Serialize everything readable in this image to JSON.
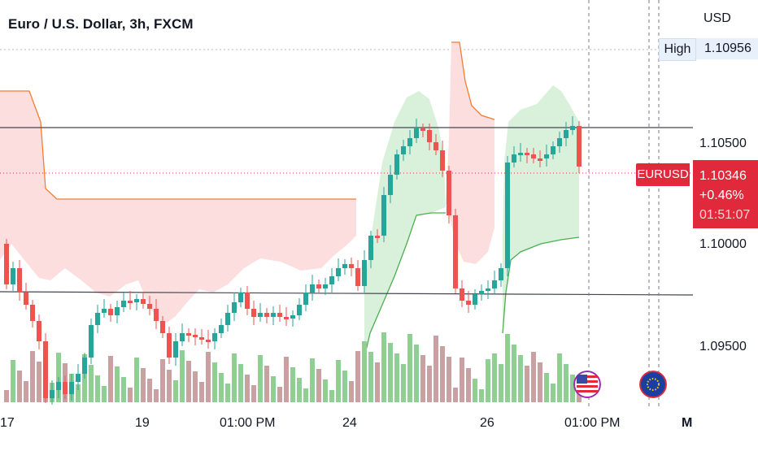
{
  "header": {
    "title": "Euro / U.S. Dollar, 3h, FXCM"
  },
  "price_axis": {
    "currency": "USD",
    "high_label": "High",
    "high_value": "1.10956",
    "ticks": [
      "1.10500",
      "1.10000",
      "1.09500"
    ],
    "symbol": "EURUSD",
    "last_price": "1.10346",
    "change": "+0.46%",
    "countdown": "01:51:07"
  },
  "time_axis": {
    "labels": [
      "17",
      "19",
      "01:00 PM",
      "24",
      "26",
      "01:00 PM",
      "M"
    ]
  },
  "colors": {
    "up": "#26a69a",
    "down": "#ef5350",
    "cloud_up": "#d7efd9",
    "cloud_down": "#fcdadb",
    "band_line_up": "#4caf50",
    "band_line_down": "#f57c30"
  },
  "events": [
    {
      "icon": "us-flag-icon"
    },
    {
      "icon": "eu-us-flag-icon"
    }
  ]
}
